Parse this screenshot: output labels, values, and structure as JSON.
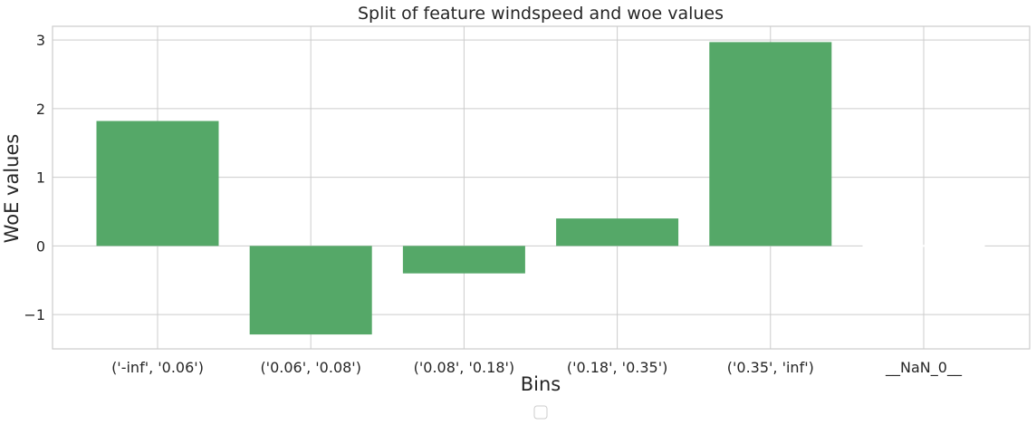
{
  "chart_data": {
    "type": "bar",
    "title": "Split of feature windspeed and woe values",
    "xlabel": "Bins",
    "ylabel": "WoE values",
    "categories": [
      "('-inf', '0.06')",
      "('0.06', '0.08')",
      "('0.08', '0.18')",
      "('0.18', '0.35')",
      "('0.35', 'inf')",
      "__NaN_0__"
    ],
    "values": [
      1.82,
      -1.29,
      -0.4,
      0.4,
      2.97,
      0.0
    ],
    "ylim": [
      -1.5,
      3.2
    ],
    "yticks": [
      -1,
      0,
      1,
      2,
      3
    ],
    "ytick_labels": [
      "−1",
      "0",
      "1",
      "2",
      "3"
    ],
    "grid": true,
    "legend": "bottom-center, empty",
    "bar_color": "#55a868"
  }
}
